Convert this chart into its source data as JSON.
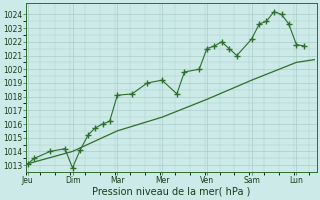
{
  "bg_color": "#cceae7",
  "grid_color": "#aacccc",
  "line_color": "#2d6e2d",
  "xlabel": "Pression niveau de la mer( hPa )",
  "xlabel_fontsize": 7,
  "ylim": [
    1012.5,
    1024.8
  ],
  "yticks": [
    1013,
    1014,
    1015,
    1016,
    1017,
    1018,
    1019,
    1020,
    1021,
    1022,
    1023,
    1024
  ],
  "ytick_fontsize": 5.5,
  "xtick_labels": [
    "Jeu",
    "Dim",
    "Mar",
    "Mer",
    "Ven",
    "Sam",
    "Lun"
  ],
  "xtick_positions": [
    0,
    1,
    2,
    3,
    4,
    5,
    6
  ],
  "xtick_fontsize": 5.5,
  "xlim": [
    -0.05,
    6.45
  ],
  "line1_x": [
    0,
    0.15,
    0.5,
    0.83,
    1.0,
    1.17,
    1.35,
    1.5,
    1.67,
    1.83,
    2.0,
    2.33,
    2.67,
    3.0,
    3.33,
    3.5,
    3.83,
    4.0,
    4.17,
    4.33,
    4.5,
    4.67,
    5.0,
    5.17,
    5.33,
    5.5,
    5.67,
    5.83,
    6.0,
    6.17
  ],
  "line1_y": [
    1013.1,
    1013.5,
    1014.0,
    1014.2,
    1012.8,
    1014.1,
    1015.2,
    1015.7,
    1016.0,
    1016.2,
    1018.1,
    1018.2,
    1019.0,
    1019.2,
    1018.2,
    1019.8,
    1020.0,
    1021.5,
    1021.7,
    1022.0,
    1021.5,
    1021.0,
    1022.2,
    1023.3,
    1023.5,
    1024.2,
    1024.0,
    1023.3,
    1021.8,
    1021.7
  ],
  "line2_x": [
    0,
    1.0,
    2.0,
    3.0,
    4.0,
    5.0,
    6.0,
    6.4
  ],
  "line2_y": [
    1013.1,
    1014.0,
    1015.5,
    1016.5,
    1017.8,
    1019.2,
    1020.5,
    1020.7
  ]
}
